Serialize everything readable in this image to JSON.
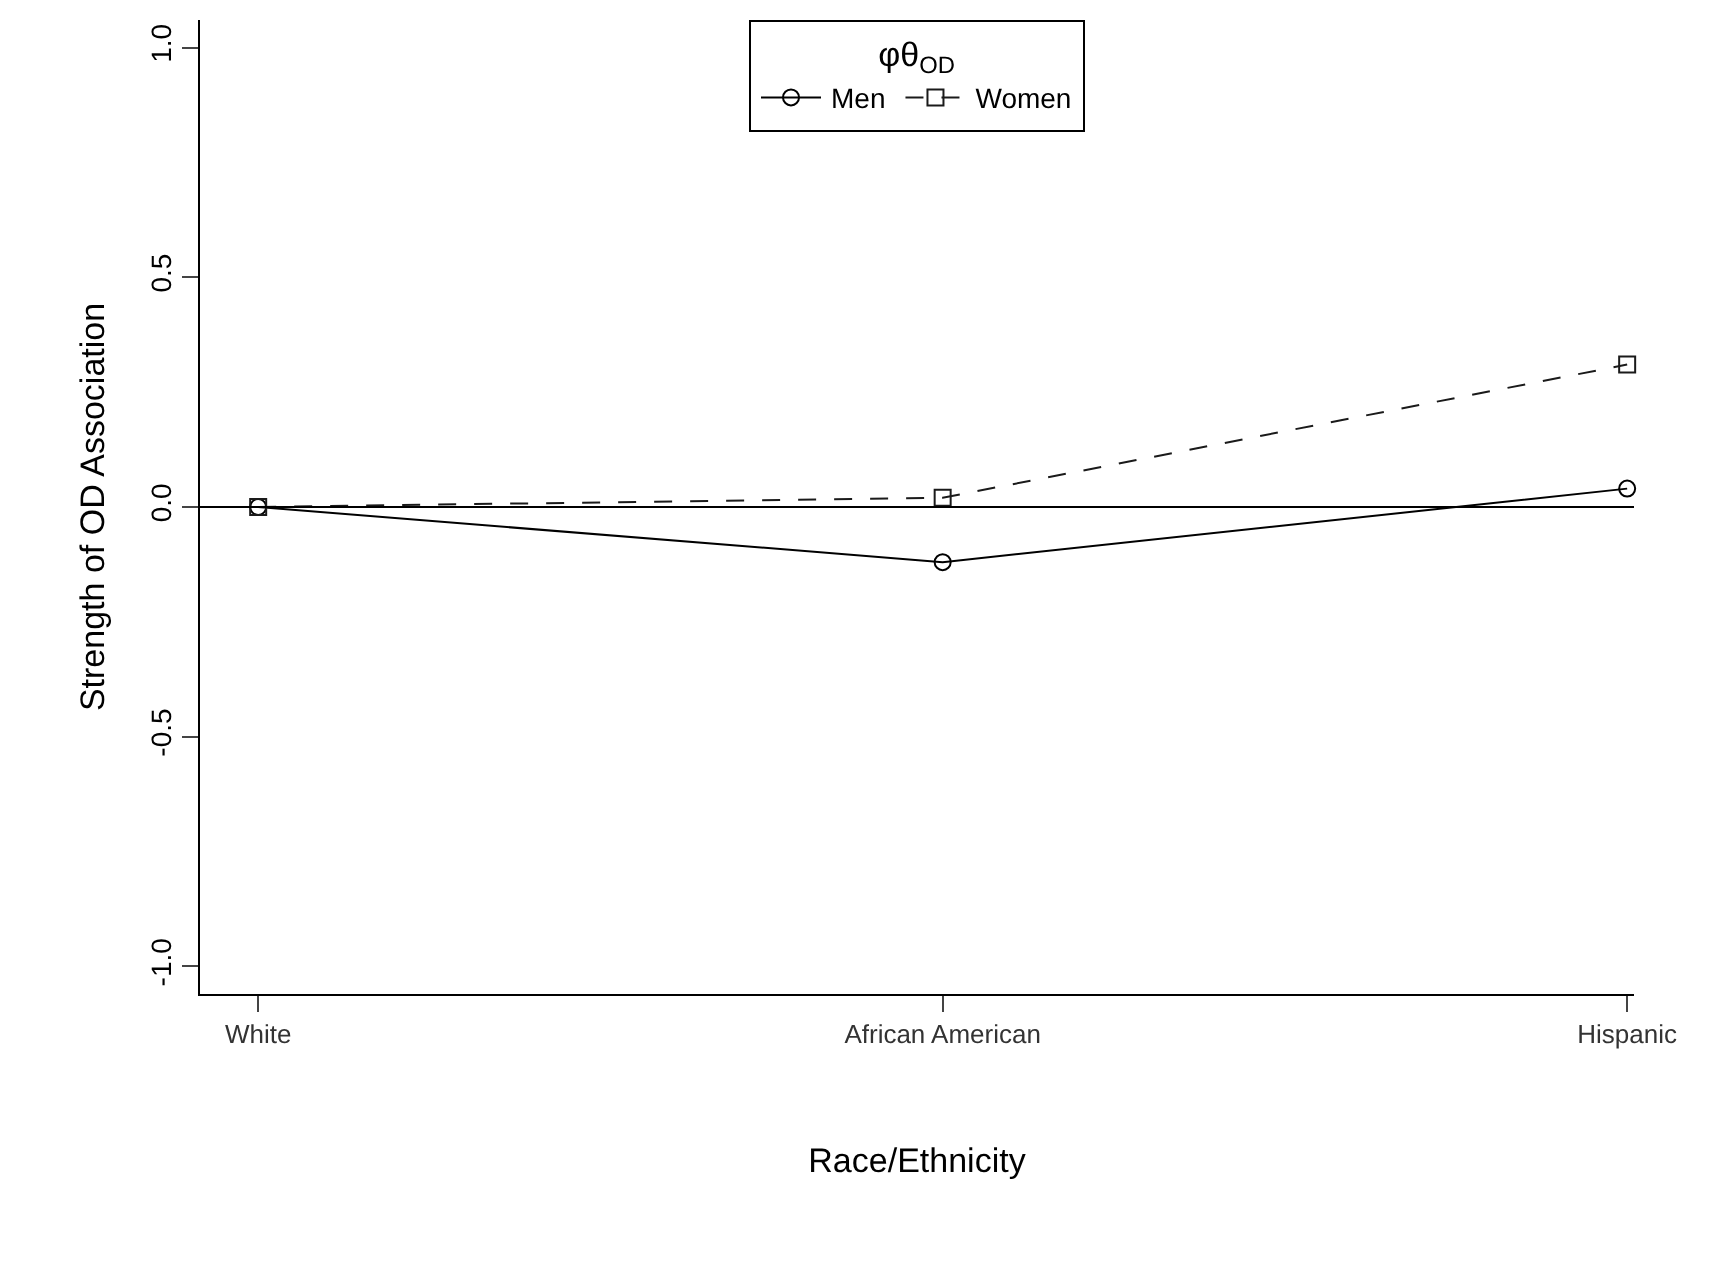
{
  "chart_data": {
    "type": "line",
    "xlabel": "Race/Ethnicity",
    "ylabel": "Strength of OD Association",
    "legend_title": "φθ$_{OD}$",
    "categories": [
      "White",
      "African American",
      "Hispanic"
    ],
    "series": [
      {
        "name": "Men",
        "color": "#000000",
        "values": [
          0,
          -0.12,
          0.04
        ],
        "marker": "circle",
        "line_style": "solid"
      },
      {
        "name": "Women",
        "color": "#1a1a1a",
        "values": [
          0,
          0.02,
          0.31
        ],
        "marker": "square",
        "line_style": "dashed"
      }
    ],
    "ylim": [
      -1.06,
      1.06
    ],
    "yticks": [
      {
        "value": -1,
        "label": "-1.0"
      },
      {
        "value": -0.5,
        "label": "-0.5"
      },
      {
        "value": 0,
        "label": "0.0"
      },
      {
        "value": 0.5,
        "label": "0.5"
      },
      {
        "value": 1,
        "label": "1.0"
      }
    ],
    "ref_lines": [
      {
        "axis": "y",
        "value": 0,
        "color": "#000000",
        "line_style": "solid"
      }
    ],
    "legend": "top"
  }
}
